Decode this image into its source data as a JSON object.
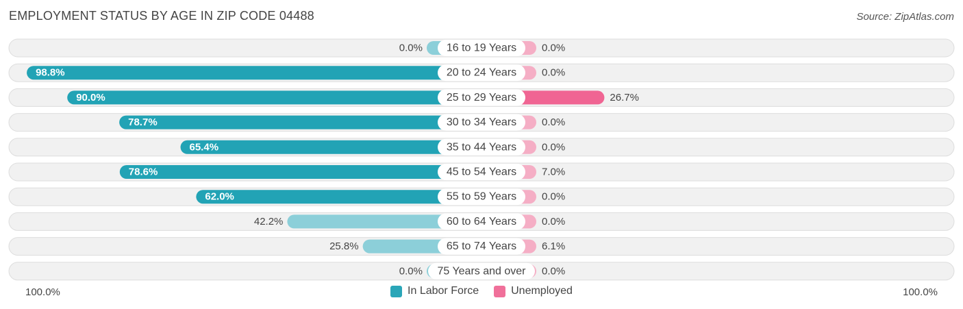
{
  "header": {
    "title": "EMPLOYMENT STATUS BY AGE IN ZIP CODE 04488",
    "source": "Source: ZipAtlas.com"
  },
  "axis": {
    "left_label": "100.0%",
    "right_label": "100.0%"
  },
  "legend": {
    "items": [
      {
        "label": "In Labor Force",
        "color": "#2aa6b8"
      },
      {
        "label": "Unemployed",
        "color": "#f0709a"
      }
    ]
  },
  "colors": {
    "row_background": "#f1f1f1",
    "row_border": "#dddddd",
    "labor_full": "#22a3b5",
    "labor_light": "#8ccfd9",
    "unemp_full": "#f06593",
    "unemp_light": "#f5aec5"
  },
  "chart_data": {
    "type": "bar",
    "orientation": "horizontal-diverging",
    "max": 100,
    "categories": [
      "16 to 19 Years",
      "20 to 24 Years",
      "25 to 29 Years",
      "30 to 34 Years",
      "35 to 44 Years",
      "45 to 54 Years",
      "55 to 59 Years",
      "60 to 64 Years",
      "65 to 74 Years",
      "75 Years and over"
    ],
    "series": [
      {
        "name": "In Labor Force",
        "values": [
          0.0,
          98.8,
          90.0,
          78.7,
          65.4,
          78.6,
          62.0,
          42.2,
          25.8,
          0.0
        ]
      },
      {
        "name": "Unemployed",
        "values": [
          0.0,
          0.0,
          26.7,
          0.0,
          0.0,
          7.0,
          0.0,
          0.0,
          6.1,
          0.0
        ]
      }
    ],
    "value_labels": {
      "In Labor Force": [
        "0.0%",
        "98.8%",
        "90.0%",
        "78.7%",
        "65.4%",
        "78.6%",
        "62.0%",
        "42.2%",
        "25.8%",
        "0.0%"
      ],
      "Unemployed": [
        "0.0%",
        "0.0%",
        "26.7%",
        "0.0%",
        "0.0%",
        "7.0%",
        "0.0%",
        "0.0%",
        "6.1%",
        "0.0%"
      ]
    }
  }
}
